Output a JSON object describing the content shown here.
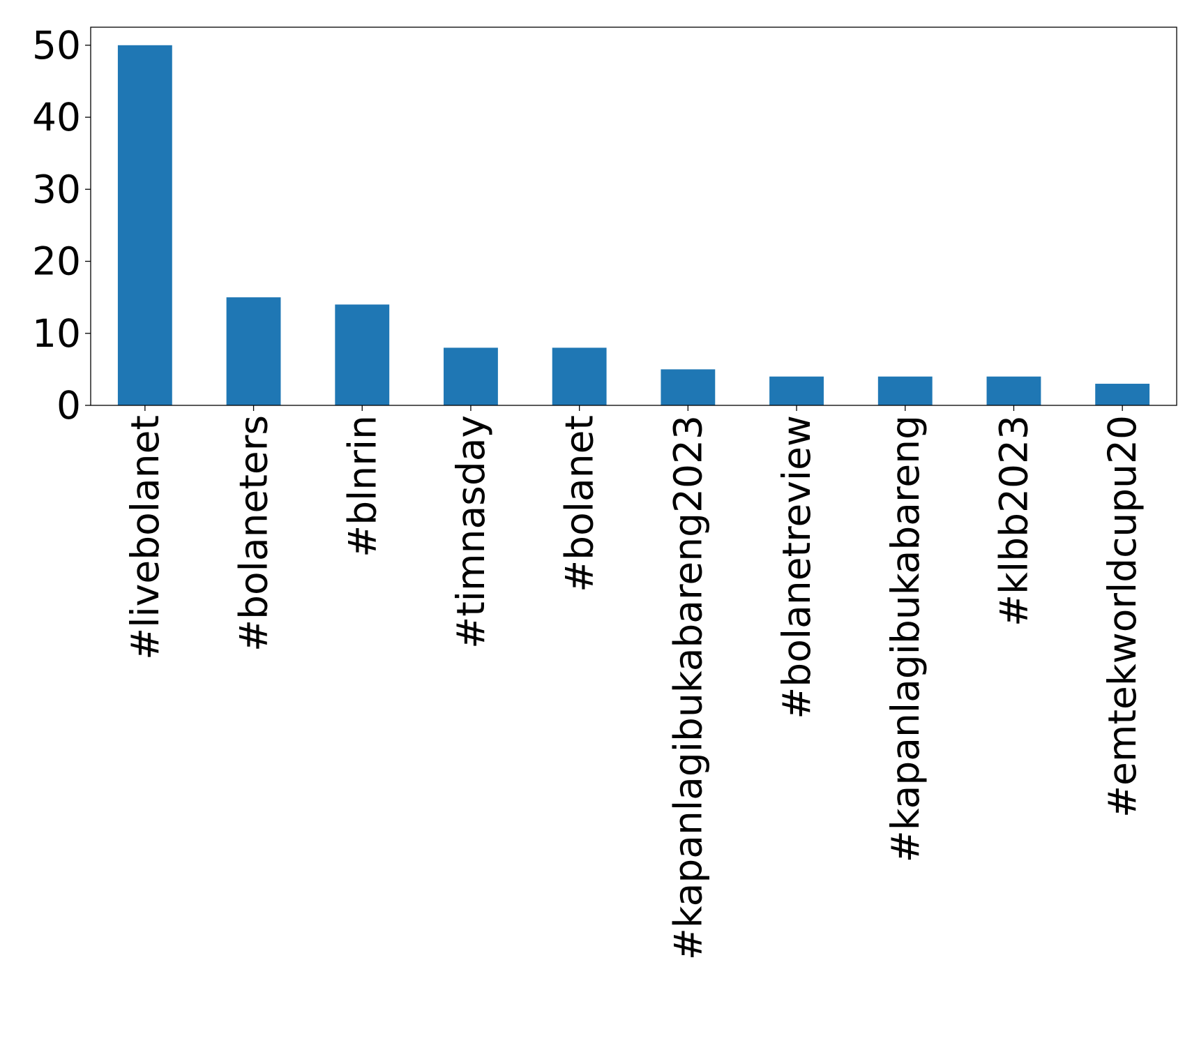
{
  "chart_data": {
    "type": "bar",
    "categories": [
      "#livebolanet",
      "#bolaneters",
      "#blnrin",
      "#timnasday",
      "#bolanet",
      "#kapanlagibukabareng2023",
      "#bolanetreview",
      "#kapanlagibukabareng",
      "#klbb2023",
      "#emtekworldcupu20"
    ],
    "values": [
      50,
      15,
      14,
      8,
      8,
      5,
      4,
      4,
      4,
      3
    ],
    "title": "",
    "xlabel": "",
    "ylabel": "",
    "ylim": [
      0,
      52.5
    ],
    "yticks": [
      0,
      10,
      20,
      30,
      40,
      50
    ],
    "grid": false,
    "legend": "none",
    "bar_color": "#1f77b4"
  }
}
